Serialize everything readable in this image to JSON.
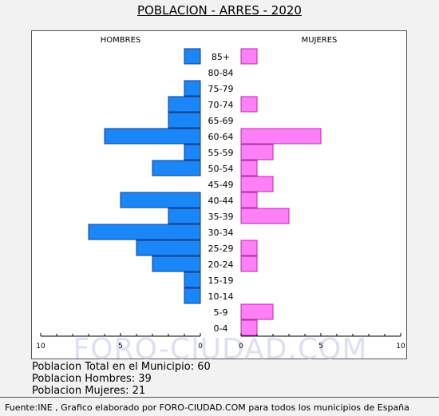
{
  "title": "POBLACION - ARRES - 2020",
  "chart_data": {
    "type": "bar",
    "orientation": "horizontal-pyramid",
    "categories": [
      "85+",
      "80-84",
      "75-79",
      "70-74",
      "65-69",
      "60-64",
      "55-59",
      "50-54",
      "45-49",
      "40-44",
      "35-39",
      "30-34",
      "25-29",
      "20-24",
      "15-19",
      "10-14",
      "5-9",
      "0-4"
    ],
    "series": [
      {
        "name": "HOMBRES",
        "color": "#1a86f7",
        "values": [
          1,
          0,
          1,
          2,
          2,
          6,
          1,
          3,
          0,
          5,
          2,
          7,
          4,
          3,
          1,
          1,
          0,
          0
        ]
      },
      {
        "name": "MUJERES",
        "color": "#ff7ff6",
        "values": [
          1,
          0,
          0,
          1,
          0,
          5,
          2,
          1,
          2,
          1,
          3,
          0,
          1,
          1,
          0,
          0,
          2,
          1
        ]
      }
    ],
    "xlim": [
      0,
      10
    ],
    "ticks_left": [
      "10",
      "5",
      "0"
    ],
    "ticks_right": [
      "0",
      "5",
      "10"
    ],
    "watermark": "FORO-CIUDAD.COM"
  },
  "summary": {
    "total": "Poblacion Total en el Municipio: 60",
    "hombres": "Poblacion Hombres: 39",
    "mujeres": "Poblacion Mujeres: 21"
  },
  "footer": "Fuente:INE , Grafico elaborado por FORO-CIUDAD.COM para todos los municipios de España"
}
